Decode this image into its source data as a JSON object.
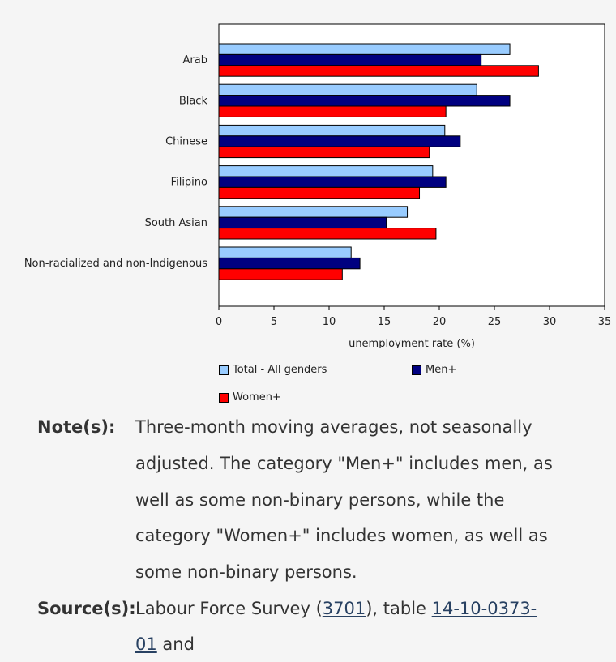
{
  "chart_data": {
    "type": "bar",
    "orientation": "horizontal",
    "categories": [
      "Arab",
      "Black",
      "Chinese",
      "Filipino",
      "South Asian",
      "Non-racialized and non-Indigenous"
    ],
    "series": [
      {
        "name": "Total - All genders",
        "color": "#99ccff",
        "values": [
          26.4,
          23.4,
          20.5,
          19.4,
          17.1,
          12.0
        ]
      },
      {
        "name": "Men+",
        "color": "#000080",
        "values": [
          23.8,
          26.4,
          21.9,
          20.6,
          15.2,
          12.8
        ]
      },
      {
        "name": "Women+",
        "color": "#ff0000",
        "values": [
          29.0,
          20.6,
          19.1,
          18.2,
          19.7,
          11.2
        ]
      }
    ],
    "xlabel": "unemployment rate (%)",
    "ylabel": "",
    "xlim": [
      0,
      35
    ],
    "xticks": [
      0,
      5,
      10,
      15,
      20,
      25,
      30,
      35
    ],
    "grid": false,
    "legend": "bottom"
  },
  "notes": {
    "label": "Note(s):",
    "text": "Three-month moving averages, not seasonally adjusted. The category \"Men+\" includes men, as well as some non-binary persons, while the category \"Women+\" includes women, as well as some non-binary persons."
  },
  "source": {
    "label": "Source(s):",
    "prefix": "Labour Force Survey (",
    "link1": "3701",
    "middle": "), table ",
    "link2": "14-10-0373-01",
    "suffix": " and"
  }
}
